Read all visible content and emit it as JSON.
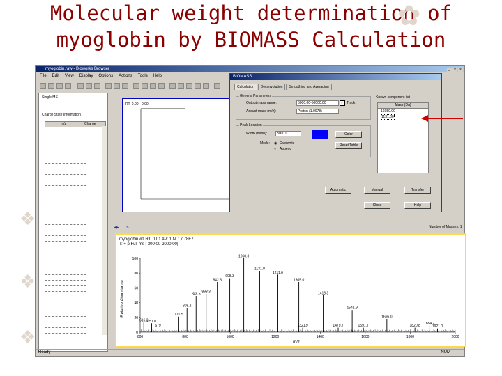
{
  "slide_title": {
    "line1": "Molecular weight determination of",
    "line2": "myoglobin by BIOMASS Calculation"
  },
  "app": {
    "window_title": "myoglobin.raw - Bioworks Browser",
    "menu": [
      "File",
      "Edit",
      "View",
      "Display",
      "Options",
      "Actions",
      "Tools",
      "Help"
    ],
    "left_panel": {
      "line1": "Single MS",
      "line2": "Charge State Information",
      "col_mz": "m/z",
      "col_charge": "Charge"
    },
    "upper_chart": {
      "label": "RT: 0.00 - 0.00"
    },
    "lower_chart": {
      "header_line1": "myoglobin #1 RT: 0.01 AV: 1 NL: 7.78E7",
      "header_line2": "T: + p Full ms [ 300.00-2000.00]"
    },
    "status_left": "Ready",
    "status_right": "NUM",
    "summary_label": "Number of Masses: 1"
  },
  "dialog": {
    "title": "BIOMASS",
    "tabs": [
      "Calculation",
      "Deconvolution",
      "Smoothing and Averaging"
    ],
    "general_params_label": "General Parameters",
    "output_mass_label": "Output mass range:",
    "output_mass_value": "5000.00-50000.00",
    "track_label": "Track",
    "adduct_label": "Adduct mass (m/z):",
    "adduct_value": "Proton  (1.0078)",
    "peak_label": "Peak Location",
    "width_label": "Width (mmu):",
    "width_value": "3000.0",
    "mode_label": "Mode:",
    "overwrite_label": "Overwrite",
    "append_label": "Append",
    "color_button": "Color",
    "reset_button": "Reset Table",
    "results_label": "Known component list",
    "results_header": "Mass (Da)",
    "result_1": "16950.00",
    "result_2": "1131.00",
    "automatic_button": "Automatic",
    "manual_button": "Manual",
    "transfer_button": "Transfer",
    "close_button": "Close",
    "help_button": "Help"
  },
  "chart_data": {
    "type": "bar",
    "title": "",
    "xlabel": "m/z",
    "ylabel": "Relative Abundance",
    "xlim": [
      600,
      2000
    ],
    "ylim": [
      0,
      100
    ],
    "xticks": [
      600,
      800,
      1000,
      1200,
      1400,
      1600,
      1800,
      2000
    ],
    "yticks": [
      0,
      20,
      40,
      60,
      80,
      100
    ],
    "peaks": [
      {
        "mz": 616.2,
        "y": 13,
        "label": "616.2"
      },
      {
        "mz": 651.0,
        "y": 12,
        "label": "651.0"
      },
      {
        "mz": 679.0,
        "y": 6,
        "label": "679"
      },
      {
        "mz": 771.5,
        "y": 21,
        "label": "771.5"
      },
      {
        "mz": 808.2,
        "y": 33,
        "label": "808.2"
      },
      {
        "mz": 848.5,
        "y": 49,
        "label": "848.5"
      },
      {
        "mz": 893.3,
        "y": 52,
        "label": "893.3"
      },
      {
        "mz": 942.8,
        "y": 68,
        "label": "942.8"
      },
      {
        "mz": 998.3,
        "y": 73,
        "label": "998.3"
      },
      {
        "mz": 1060.3,
        "y": 100,
        "label": "1060.3"
      },
      {
        "mz": 1131.0,
        "y": 83,
        "label": "1131.0"
      },
      {
        "mz": 1211.6,
        "y": 78,
        "label": "1211.6"
      },
      {
        "mz": 1305.0,
        "y": 68,
        "label": "1305.0"
      },
      {
        "mz": 1321.9,
        "y": 6,
        "label": "1321.9"
      },
      {
        "mz": 1413.3,
        "y": 50,
        "label": "1413.3"
      },
      {
        "mz": 1479.7,
        "y": 6,
        "label": "1479.7"
      },
      {
        "mz": 1541.9,
        "y": 30,
        "label": "1541.9"
      },
      {
        "mz": 1591.7,
        "y": 6,
        "label": "1591.7"
      },
      {
        "mz": 1696.0,
        "y": 18,
        "label": "1696.0"
      },
      {
        "mz": 1820.8,
        "y": 6,
        "label": "1820.8"
      },
      {
        "mz": 1884.2,
        "y": 9,
        "label": "1884.2"
      },
      {
        "mz": 1921.0,
        "y": 5,
        "label": "1921.0"
      }
    ]
  }
}
